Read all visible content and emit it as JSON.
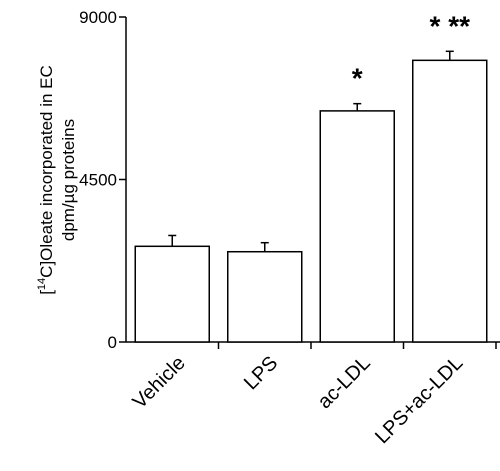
{
  "chart_data": {
    "type": "bar",
    "categories": [
      "Vehicle",
      "LPS",
      "ac-LDL",
      "LPS+ac-LDL"
    ],
    "values": [
      2650,
      2500,
      6400,
      7800
    ],
    "errors": [
      300,
      250,
      200,
      250
    ],
    "significance": [
      "",
      "",
      "*",
      "* **"
    ],
    "ylim": [
      0,
      9000
    ],
    "yticks": [
      0,
      4500,
      9000
    ],
    "ylabel": {
      "line1_prefix": "[",
      "line1_sup": "14",
      "line1_main": "C]Oleate incorporated  in EC",
      "line2": "dpm/µg proteins"
    },
    "xlabel": "",
    "title": "",
    "grid": false,
    "bar_fill": "#ffffff",
    "stroke_color": "#000000"
  }
}
